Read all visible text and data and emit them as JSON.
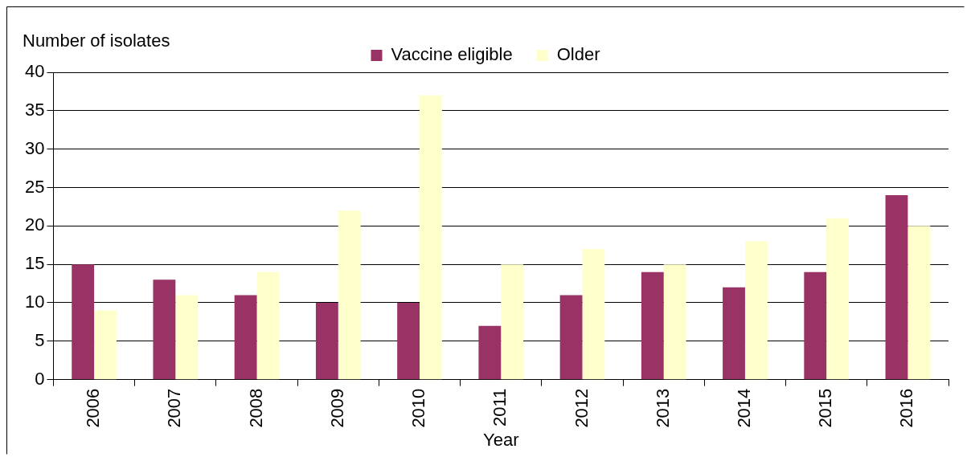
{
  "chart_data": {
    "type": "bar",
    "xlabel": "Year",
    "ylabel": "Number of isolates",
    "categories": [
      "2006",
      "2007",
      "2008",
      "2009",
      "2010",
      "2011",
      "2012",
      "2013",
      "2014",
      "2015",
      "2016"
    ],
    "series": [
      {
        "name": "Vaccine eligible",
        "color": "#993366",
        "values": [
          15,
          13,
          11,
          10,
          10,
          7,
          11,
          14,
          12,
          14,
          24
        ]
      },
      {
        "name": "Older",
        "color": "#ffffcc",
        "values": [
          9,
          11,
          14,
          22,
          37,
          15,
          17,
          15,
          18,
          21,
          20
        ]
      }
    ],
    "ylim": [
      0,
      40
    ],
    "yticks": [
      0,
      5,
      10,
      15,
      20,
      25,
      30,
      35,
      40
    ],
    "grid": "y",
    "legend": "top"
  }
}
